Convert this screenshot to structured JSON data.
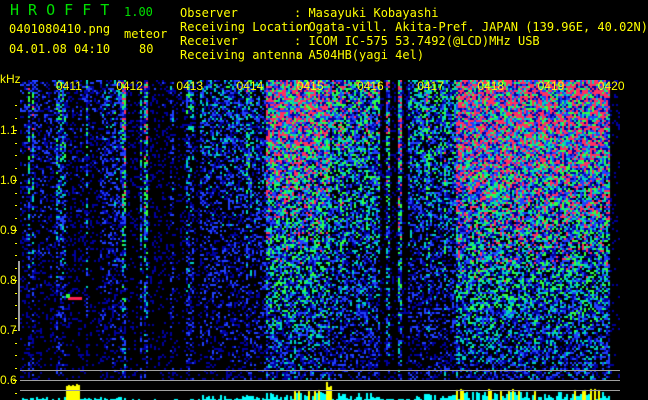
{
  "header": {
    "app_name": "H R O F F T",
    "version": "1.00",
    "filename": "0401080410.png",
    "datetime": "04.01.08 04:10",
    "meteor_label": "meteor",
    "meteor_count": "80",
    "info_labels": [
      "Observer",
      "Receiving Location",
      "Receiver",
      "Receiving antenna"
    ],
    "info_values": [
      ": Masayuki Kobayashi",
      ": Ogata-vill. Akita-Pref. JAPAN (139.96E, 40.02N)",
      ": ICOM IC-575 53.7492(@LCD)MHz USB",
      ": A504HB(yagi 4el)"
    ]
  },
  "chart_data": {
    "type": "heatmap",
    "ylabel": "kHz",
    "y_ticks": [
      "1.1",
      "1.0",
      "0.9",
      "0.8",
      "0.7",
      "0.6"
    ],
    "y_tick_values": [
      1.1,
      1.0,
      0.9,
      0.8,
      0.7,
      0.6
    ],
    "x_ticks": [
      "0411",
      "0412",
      "0413",
      "0414",
      "0415",
      "0416",
      "0417",
      "0418",
      "0419",
      "0420"
    ],
    "colors": {
      "text": "#ffff00",
      "title": "#00e000",
      "low": "#0000c0",
      "mid": "#00c0c0",
      "high": "#00ff40",
      "peak": "#ff2040",
      "grid": "#a0a0a0",
      "histogram_high": "#ffff00",
      "histogram_low": "#00ffff"
    }
  }
}
